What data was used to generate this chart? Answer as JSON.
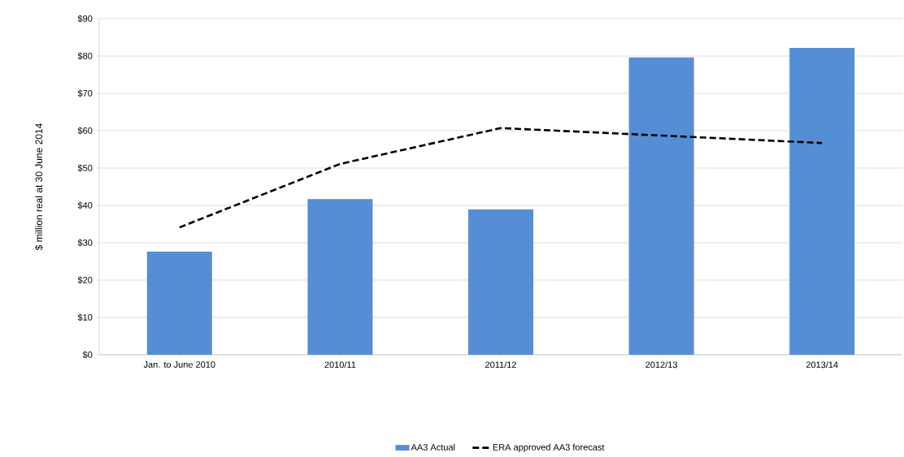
{
  "chart_data": {
    "type": "bar",
    "ylabel": "$ million real at 30 June 2014",
    "categories": [
      "Jan. to June 2010",
      "2010/11",
      "2011/12",
      "2012/13",
      "2013/14"
    ],
    "series": [
      {
        "name": "AA3 Actual",
        "color": "#558ed5",
        "values": [
          27.6,
          41.7,
          38.9,
          79.6,
          82.2
        ]
      },
      {
        "name": "ERA approved AA3 forecast",
        "type": "line",
        "color": "#000000",
        "line_style": "dashed",
        "values": [
          34.1,
          51.1,
          60.7,
          58.7,
          56.7
        ]
      }
    ],
    "ylim": [
      0,
      90
    ],
    "yticks": [
      {
        "value": 0,
        "label": "$0"
      },
      {
        "value": 10,
        "label": "$10"
      },
      {
        "value": 20,
        "label": "$20"
      },
      {
        "value": 30,
        "label": "$30"
      },
      {
        "value": 40,
        "label": "$40"
      },
      {
        "value": 50,
        "label": "$50"
      },
      {
        "value": 60,
        "label": "$60"
      },
      {
        "value": 70,
        "label": "$70"
      },
      {
        "value": 80,
        "label": "$80"
      },
      {
        "value": 90,
        "label": "$90"
      }
    ],
    "grid": "y",
    "legend": "bottom"
  }
}
